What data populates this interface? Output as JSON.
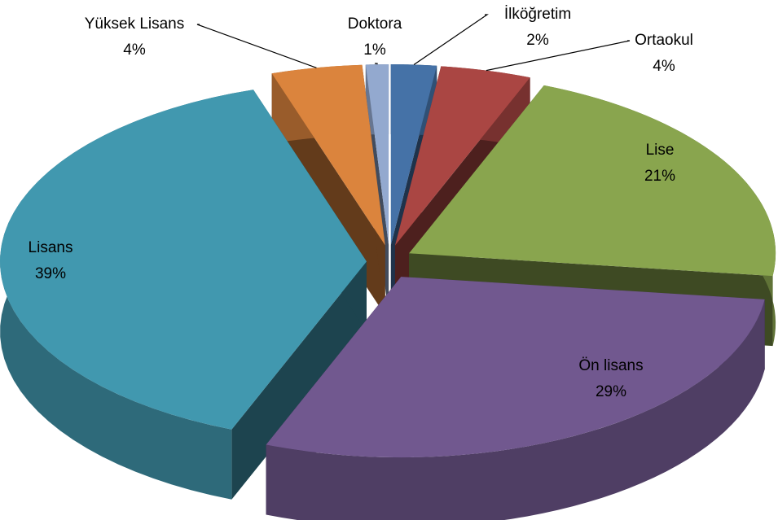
{
  "chart_data": {
    "type": "pie",
    "categories": [
      "İlköğretim",
      "Ortaokul",
      "Lise",
      "Ön lisans",
      "Lisans",
      "Yüksek Lisans",
      "Doktora"
    ],
    "values": [
      2,
      4,
      21,
      29,
      39,
      4,
      1
    ],
    "value_labels": [
      "2%",
      "4%",
      "21%",
      "29%",
      "39%",
      "4%",
      "1%"
    ],
    "colors": [
      "#4572a7",
      "#aa4643",
      "#89a54e",
      "#71588f",
      "#4198af",
      "#db843d",
      "#93a9cf"
    ]
  }
}
